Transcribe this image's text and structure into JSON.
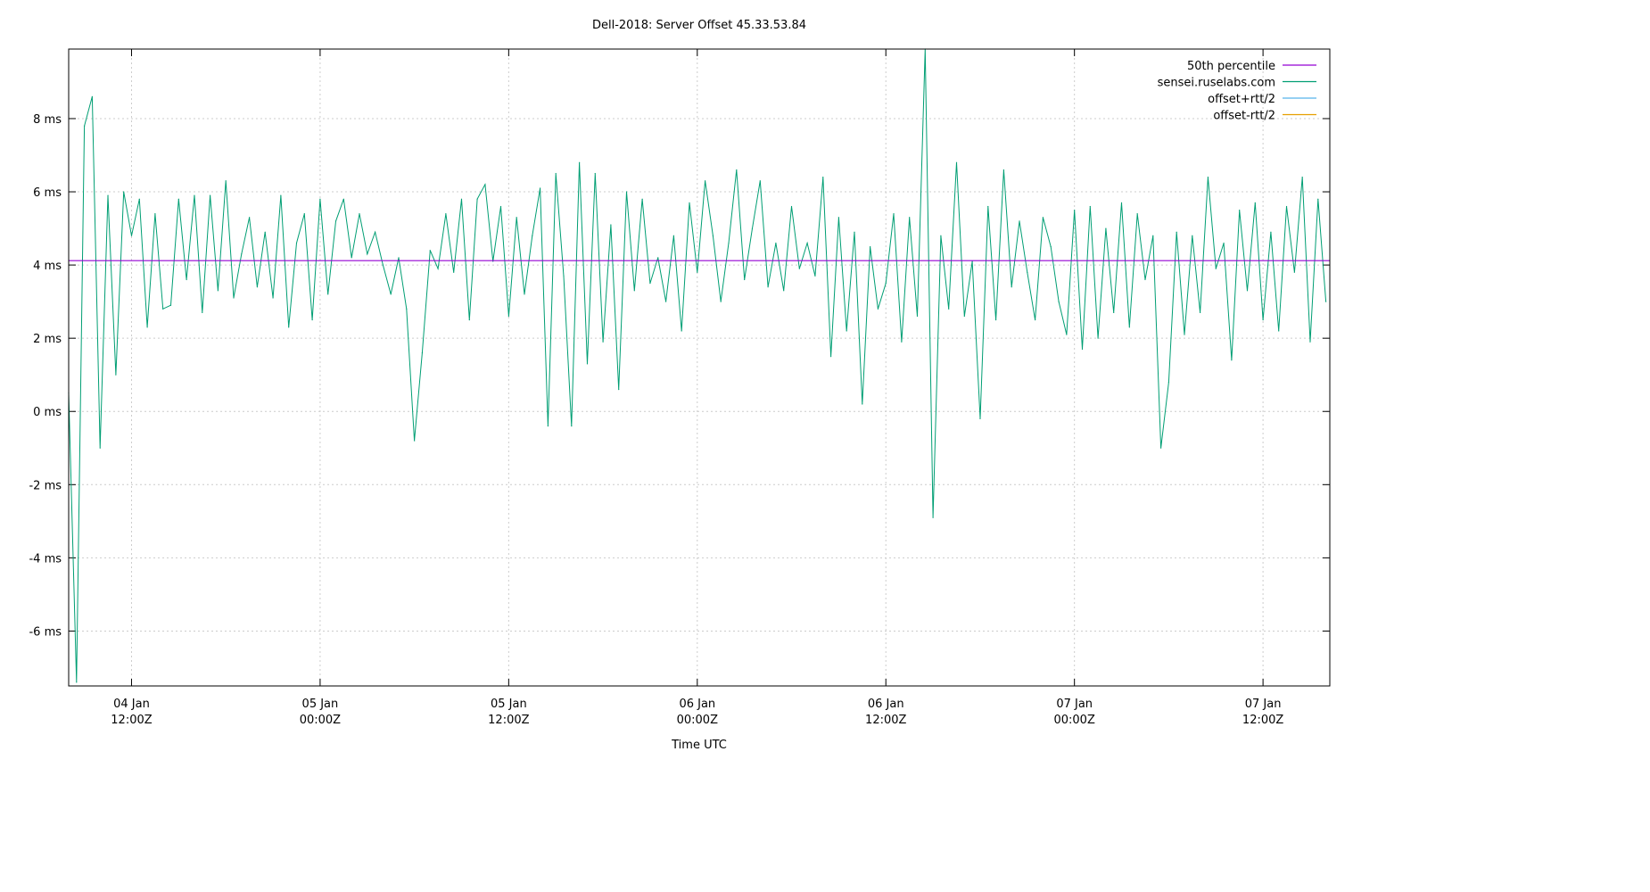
{
  "chart_data": {
    "type": "line",
    "title": "Dell-2018: Server Offset 45.33.53.84",
    "xlabel": "Time UTC",
    "ylabel": "",
    "ylim": [
      -7.5,
      9.9
    ],
    "xlim": [
      "04 Jan 08:00",
      "07 Jan 16:15"
    ],
    "grid": true,
    "legend_position": "top-right",
    "y_ticks": [
      {
        "value": -6,
        "label": "-6 ms"
      },
      {
        "value": -4,
        "label": "-4 ms"
      },
      {
        "value": -2,
        "label": "-2 ms"
      },
      {
        "value": 0,
        "label": "0 ms"
      },
      {
        "value": 2,
        "label": "2 ms"
      },
      {
        "value": 4,
        "label": "4 ms"
      },
      {
        "value": 6,
        "label": "6 ms"
      },
      {
        "value": 8,
        "label": "8 ms"
      }
    ],
    "x_ticks": [
      {
        "value": "04 Jan 12:00",
        "line1": "04 Jan",
        "line2": "12:00Z"
      },
      {
        "value": "05 Jan 00:00",
        "line1": "05 Jan",
        "line2": "00:00Z"
      },
      {
        "value": "05 Jan 12:00",
        "line1": "05 Jan",
        "line2": "12:00Z"
      },
      {
        "value": "06 Jan 00:00",
        "line1": "06 Jan",
        "line2": "00:00Z"
      },
      {
        "value": "06 Jan 12:00",
        "line1": "06 Jan",
        "line2": "12:00Z"
      },
      {
        "value": "07 Jan 00:00",
        "line1": "07 Jan",
        "line2": "00:00Z"
      },
      {
        "value": "07 Jan 12:00",
        "line1": "07 Jan",
        "line2": "12:00Z"
      }
    ],
    "legend": [
      {
        "name": "50th percentile",
        "color": "#9400d3"
      },
      {
        "name": "sensei.ruselabs.com",
        "color": "#009e73"
      },
      {
        "name": "offset+rtt/2",
        "color": "#56b4e9"
      },
      {
        "name": "offset-rtt/2",
        "color": "#e69f00"
      }
    ],
    "median": 4.12,
    "series": [
      {
        "name": "sensei.ruselabs.com",
        "color": "#009e73",
        "x": [
          "04 Jan 08:00",
          "04 Jan 08:30",
          "04 Jan 09:00",
          "04 Jan 09:30",
          "04 Jan 10:00",
          "04 Jan 10:30",
          "04 Jan 11:00",
          "04 Jan 11:30",
          "04 Jan 12:00",
          "04 Jan 12:30",
          "04 Jan 13:00",
          "04 Jan 13:30",
          "04 Jan 14:00",
          "04 Jan 14:30",
          "04 Jan 15:00",
          "04 Jan 15:30",
          "04 Jan 16:00",
          "04 Jan 16:30",
          "04 Jan 17:00",
          "04 Jan 17:30",
          "04 Jan 18:00",
          "04 Jan 18:30",
          "04 Jan 19:00",
          "04 Jan 19:30",
          "04 Jan 20:00",
          "04 Jan 20:30",
          "04 Jan 21:00",
          "04 Jan 21:30",
          "04 Jan 22:00",
          "04 Jan 22:30",
          "04 Jan 23:00",
          "04 Jan 23:30",
          "05 Jan 00:00",
          "05 Jan 00:30",
          "05 Jan 01:00",
          "05 Jan 01:30",
          "05 Jan 02:00",
          "05 Jan 02:30",
          "05 Jan 03:00",
          "05 Jan 03:30",
          "05 Jan 04:00",
          "05 Jan 04:30",
          "05 Jan 05:00",
          "05 Jan 05:30",
          "05 Jan 06:00",
          "05 Jan 06:30",
          "05 Jan 07:00",
          "05 Jan 07:30",
          "05 Jan 08:00",
          "05 Jan 08:30",
          "05 Jan 09:00",
          "05 Jan 09:30",
          "05 Jan 10:00",
          "05 Jan 10:30",
          "05 Jan 11:00",
          "05 Jan 11:30",
          "05 Jan 12:00",
          "05 Jan 12:30",
          "05 Jan 13:00",
          "05 Jan 13:30",
          "05 Jan 14:00",
          "05 Jan 14:30",
          "05 Jan 15:00",
          "05 Jan 15:30",
          "05 Jan 16:00",
          "05 Jan 16:30",
          "05 Jan 17:00",
          "05 Jan 17:30",
          "05 Jan 18:00",
          "05 Jan 18:30",
          "05 Jan 19:00",
          "05 Jan 19:30",
          "05 Jan 20:00",
          "05 Jan 20:30",
          "05 Jan 21:00",
          "05 Jan 21:30",
          "05 Jan 22:00",
          "05 Jan 22:30",
          "05 Jan 23:00",
          "05 Jan 23:30",
          "06 Jan 00:00",
          "06 Jan 00:30",
          "06 Jan 01:00",
          "06 Jan 01:30",
          "06 Jan 02:00",
          "06 Jan 02:30",
          "06 Jan 03:00",
          "06 Jan 03:30",
          "06 Jan 04:00",
          "06 Jan 04:30",
          "06 Jan 05:00",
          "06 Jan 05:30",
          "06 Jan 06:00",
          "06 Jan 06:30",
          "06 Jan 07:00",
          "06 Jan 07:30",
          "06 Jan 08:00",
          "06 Jan 08:30",
          "06 Jan 09:00",
          "06 Jan 09:30",
          "06 Jan 10:00",
          "06 Jan 10:30",
          "06 Jan 11:00",
          "06 Jan 11:30",
          "06 Jan 12:00",
          "06 Jan 12:30",
          "06 Jan 13:00",
          "06 Jan 13:30",
          "06 Jan 14:00",
          "06 Jan 14:30",
          "06 Jan 15:00",
          "06 Jan 15:30",
          "06 Jan 16:00",
          "06 Jan 16:30",
          "06 Jan 17:00",
          "06 Jan 17:30",
          "06 Jan 18:00",
          "06 Jan 18:30",
          "06 Jan 19:00",
          "06 Jan 19:30",
          "06 Jan 20:00",
          "06 Jan 20:30",
          "06 Jan 21:00",
          "06 Jan 21:30",
          "06 Jan 22:00",
          "06 Jan 22:30",
          "06 Jan 23:00",
          "06 Jan 23:30",
          "07 Jan 00:00",
          "07 Jan 00:30",
          "07 Jan 01:00",
          "07 Jan 01:30",
          "07 Jan 02:00",
          "07 Jan 02:30",
          "07 Jan 03:00",
          "07 Jan 03:30",
          "07 Jan 04:00",
          "07 Jan 04:30",
          "07 Jan 05:00",
          "07 Jan 05:30",
          "07 Jan 06:00",
          "07 Jan 06:30",
          "07 Jan 07:00",
          "07 Jan 07:30",
          "07 Jan 08:00",
          "07 Jan 08:30",
          "07 Jan 09:00",
          "07 Jan 09:30",
          "07 Jan 10:00",
          "07 Jan 10:30",
          "07 Jan 11:00",
          "07 Jan 11:30",
          "07 Jan 12:00",
          "07 Jan 12:30",
          "07 Jan 13:00",
          "07 Jan 13:30",
          "07 Jan 14:00",
          "07 Jan 14:30",
          "07 Jan 15:00",
          "07 Jan 15:30",
          "07 Jan 16:00"
        ],
        "y": [
          0.5,
          -7.4,
          7.8,
          8.6,
          -1.0,
          5.9,
          1.0,
          6.0,
          4.8,
          5.8,
          2.3,
          5.4,
          2.8,
          2.9,
          5.8,
          3.6,
          5.9,
          2.7,
          5.9,
          3.3,
          6.3,
          3.1,
          4.3,
          5.3,
          3.4,
          4.9,
          3.1,
          5.9,
          2.3,
          4.6,
          5.4,
          2.5,
          5.8,
          3.2,
          5.2,
          5.8,
          4.2,
          5.4,
          4.3,
          4.9,
          4.0,
          3.2,
          4.2,
          2.8,
          -0.8,
          1.6,
          4.4,
          3.9,
          5.4,
          3.8,
          5.8,
          2.5,
          5.8,
          6.2,
          4.1,
          5.6,
          2.6,
          5.3,
          3.2,
          4.8,
          6.1,
          -0.4,
          6.5,
          3.7,
          -0.4,
          6.8,
          1.3,
          6.5,
          1.9,
          5.1,
          0.6,
          6.0,
          3.3,
          5.8,
          3.5,
          4.2,
          3.0,
          4.8,
          2.2,
          5.7,
          3.8,
          6.3,
          4.8,
          3.0,
          4.6,
          6.6,
          3.6,
          5.0,
          6.3,
          3.4,
          4.6,
          3.3,
          5.6,
          3.9,
          4.6,
          3.7,
          6.4,
          1.5,
          5.3,
          2.2,
          4.9,
          0.2,
          4.5,
          2.8,
          3.5,
          5.4,
          1.9,
          5.3,
          2.6,
          9.9,
          -2.9,
          4.8,
          2.8,
          6.8,
          2.6,
          4.1,
          -0.2,
          5.6,
          2.5,
          6.6,
          3.4,
          5.2,
          3.8,
          2.5,
          5.3,
          4.5,
          3.0,
          2.1,
          5.5,
          1.7,
          5.6,
          2.0,
          5.0,
          2.7,
          5.7,
          2.3,
          5.4,
          3.6,
          4.8,
          -1.0,
          0.8,
          4.9,
          2.1,
          4.8,
          2.7,
          6.4,
          3.9,
          4.6,
          1.4,
          5.5,
          3.3,
          5.7,
          2.5,
          4.9,
          2.2,
          5.6,
          3.8,
          6.4,
          1.9,
          5.8,
          3.0
        ]
      }
    ]
  }
}
